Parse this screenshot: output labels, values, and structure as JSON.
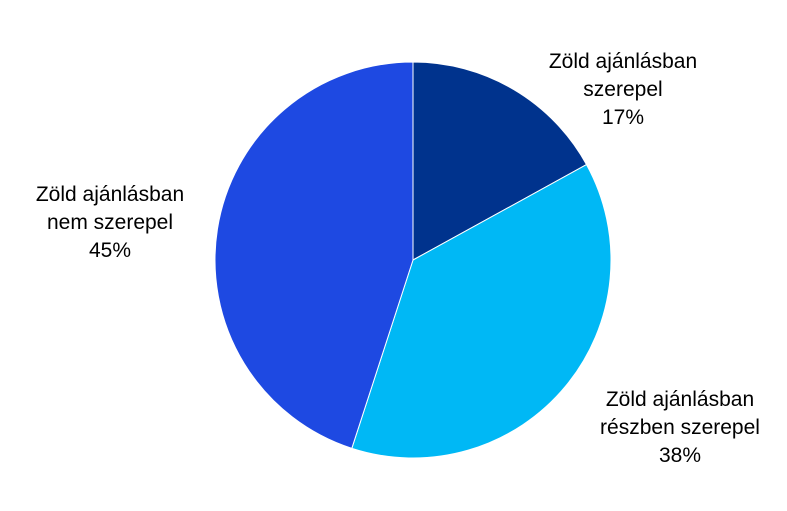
{
  "chart_data": {
    "type": "pie",
    "title": "",
    "start_angle": "top",
    "direction": "clockwise",
    "slices": [
      {
        "label_line1": "Zöld ajánlásban",
        "label_line2": "szerepel",
        "value": 17,
        "value_label": "17%",
        "color": "#00338D"
      },
      {
        "label_line1": "Zöld ajánlásban",
        "label_line2": "részben szerepel",
        "value": 38,
        "value_label": "38%",
        "color": "#00B8F5"
      },
      {
        "label_line1": "Zöld ajánlásban",
        "label_line2": "nem szerepel",
        "value": 45,
        "value_label": "45%",
        "color": "#1E49E2"
      }
    ]
  }
}
